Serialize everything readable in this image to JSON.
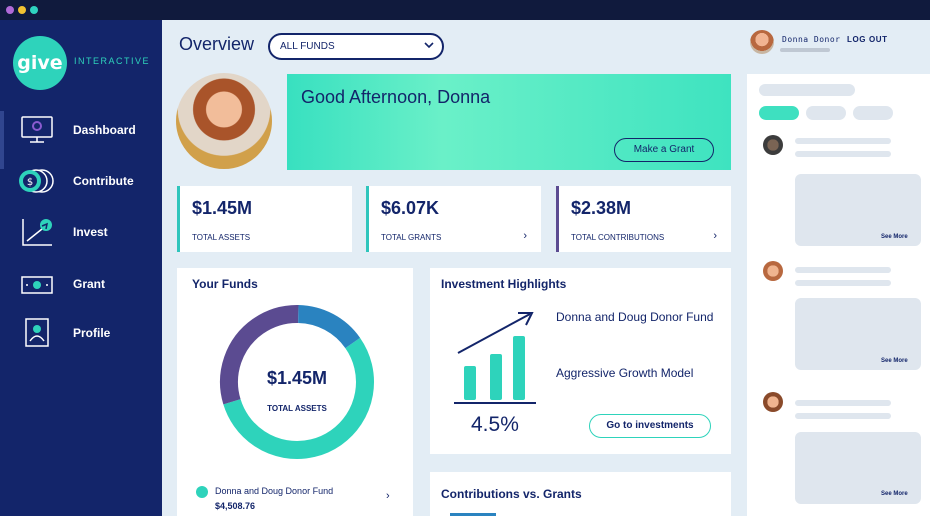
{
  "app": {
    "logo_mark": "give",
    "logo_text": "INTERACTIVE"
  },
  "sidebar": {
    "items": [
      {
        "label": "Dashboard",
        "icon": "monitor-icon",
        "active": true
      },
      {
        "label": "Contribute",
        "icon": "coins-icon",
        "active": false
      },
      {
        "label": "Invest",
        "icon": "chart-up-icon",
        "active": false
      },
      {
        "label": "Grant",
        "icon": "cash-icon",
        "active": false
      },
      {
        "label": "Profile",
        "icon": "profile-icon",
        "active": false
      }
    ]
  },
  "header": {
    "title": "Overview",
    "fund_select": {
      "value": "ALL FUNDS",
      "icon": "chevron-down-icon"
    },
    "user_name": "Donna Donor",
    "logout_label": "LOG OUT"
  },
  "greeting": {
    "text": "Good Afternoon, Donna",
    "button_label": "Make a Grant"
  },
  "stats": [
    {
      "value": "$1.45M",
      "label": "TOTAL ASSETS",
      "arrow": ""
    },
    {
      "value": "$6.07K",
      "label": "TOTAL GRANTS",
      "arrow": "›"
    },
    {
      "value": "$2.38M",
      "label": "TOTAL CONTRIBUTIONS",
      "arrow": "›"
    }
  ],
  "your_funds": {
    "title": "Your Funds",
    "center_value": "$1.45M",
    "center_label": "TOTAL ASSETS",
    "donut_segments": [
      {
        "fraction": 0.55,
        "color": "#2ed3bb"
      },
      {
        "fraction": 0.3,
        "color": "#5b4b91"
      },
      {
        "fraction": 0.15,
        "color": "#2a83c0"
      }
    ],
    "fund_name": "Donna and Doug Donor Fund",
    "fund_value": "$4,508.76",
    "arrow": "›"
  },
  "investment": {
    "title": "Investment Highlights",
    "fund_name": "Donna and Doug Donor Fund",
    "model": "Aggressive Growth Model",
    "percent": "4.5%",
    "button_label": "Go to investments"
  },
  "contributions": {
    "title": "Contributions vs. Grants"
  },
  "feed": {
    "see_more_label": "See More",
    "items": 3
  },
  "colors": {
    "sidebar": "#13256a",
    "accent": "#2ed3bb",
    "purple": "#5b4b91",
    "blue": "#2a83c0"
  }
}
